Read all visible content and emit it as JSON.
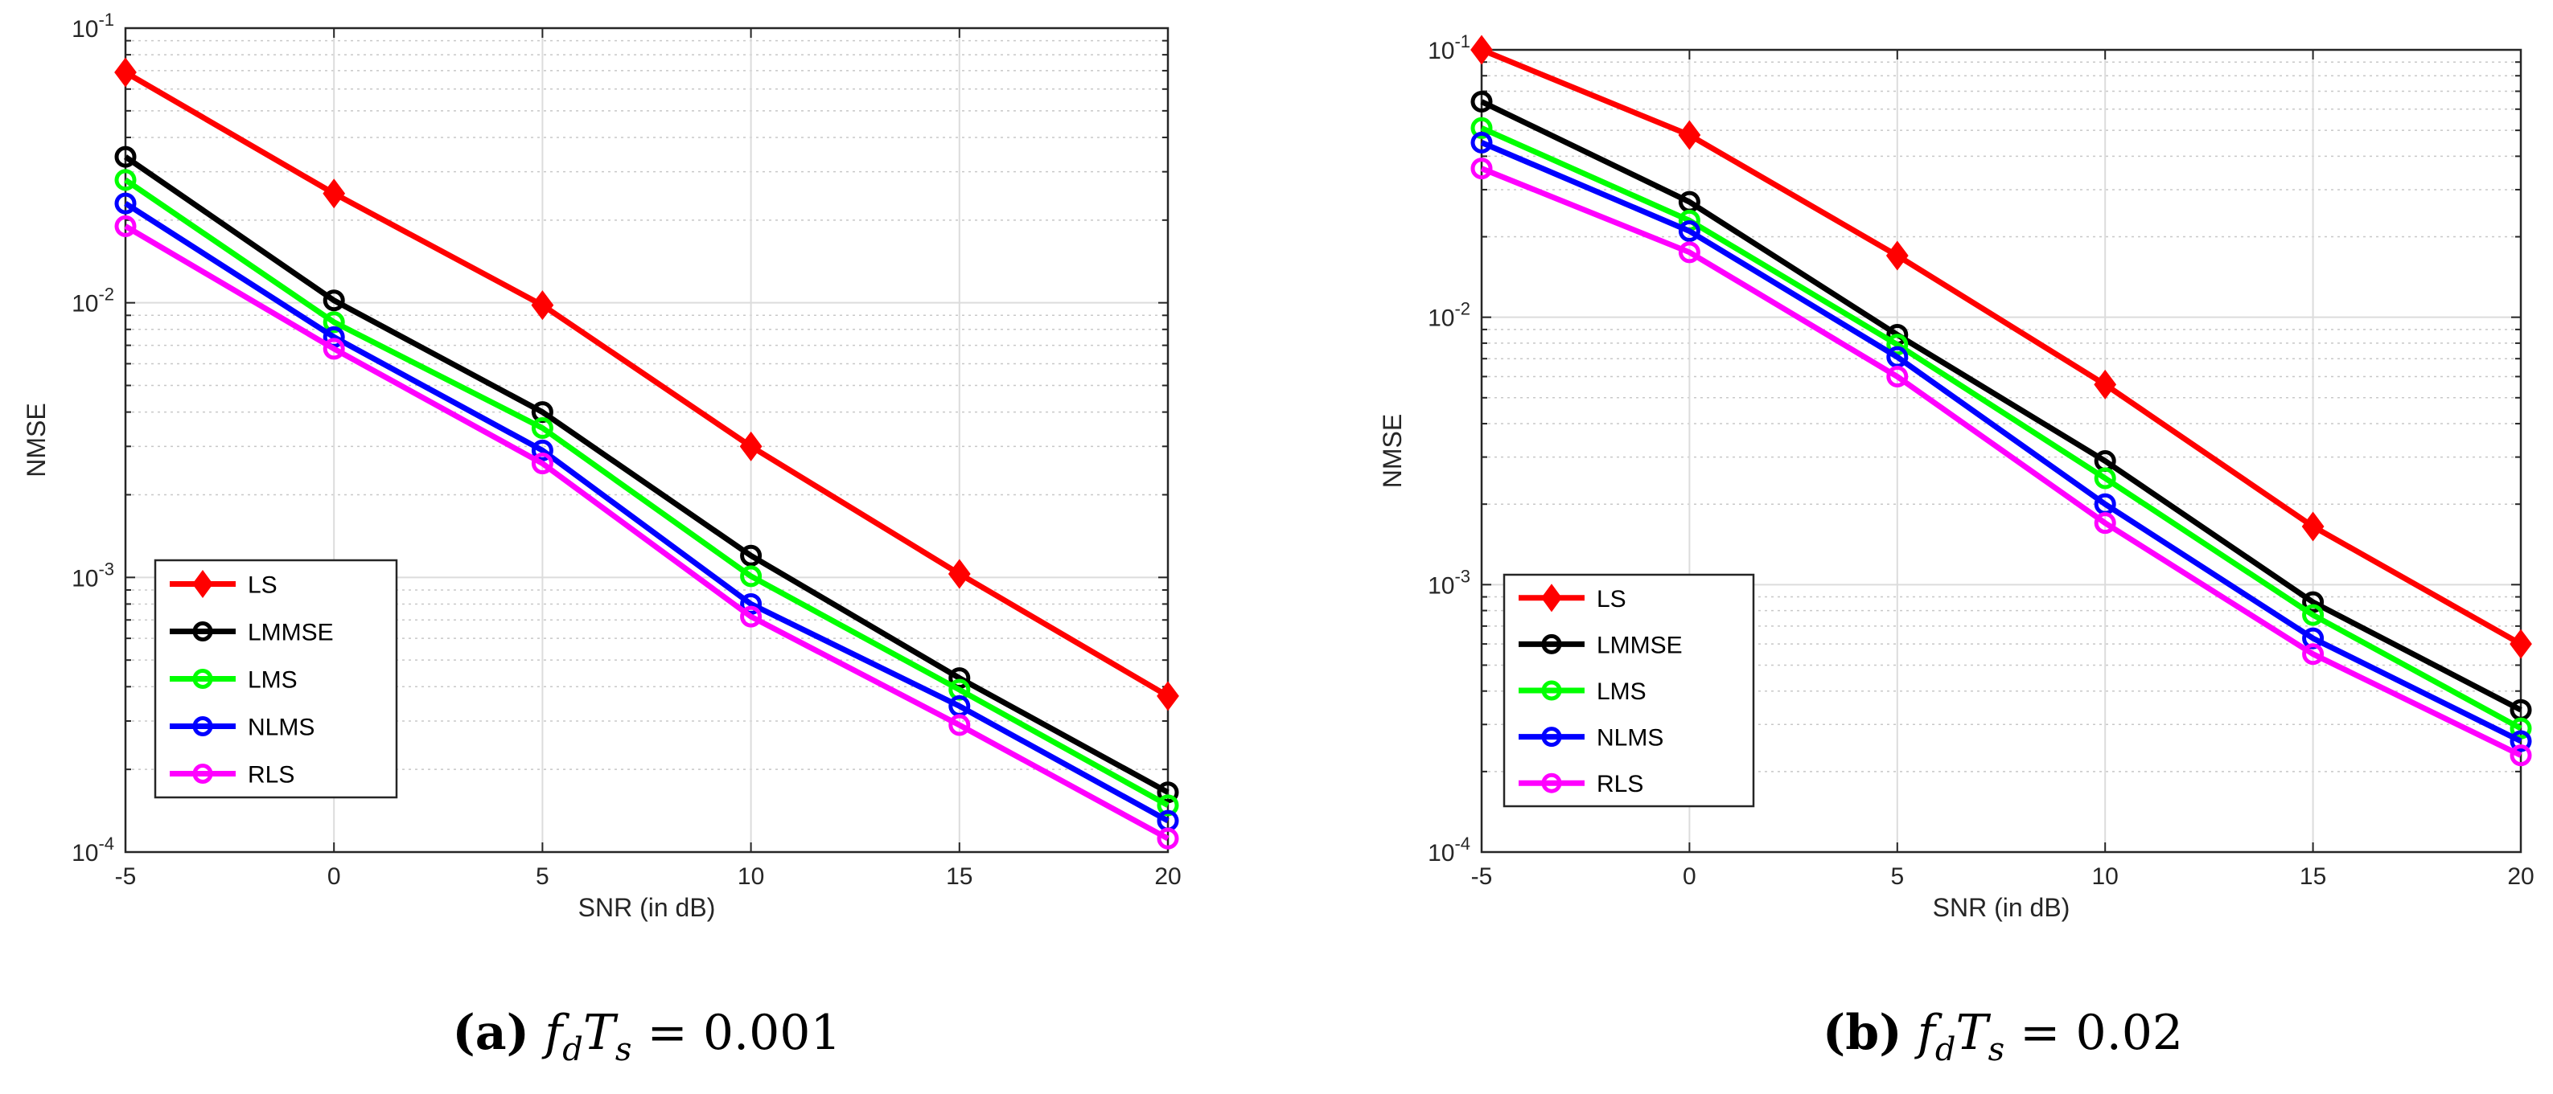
{
  "chart_data": [
    {
      "type": "line",
      "panel": "a",
      "caption": {
        "label": "(a)",
        "formula_lhs": "f",
        "sub_d": "d",
        "T": "T",
        "sub_s": "s",
        "equals": "=",
        "value": "0.001"
      },
      "xlabel": "SNR (in dB)",
      "ylabel": "NMSE",
      "yscale": "log",
      "xlim": [
        -5,
        20
      ],
      "ylim": [
        0.0001,
        0.1
      ],
      "xticks": [
        -5,
        0,
        5,
        10,
        15,
        20
      ],
      "xtick_labels": [
        "-5",
        "0",
        "5",
        "10",
        "15",
        "20"
      ],
      "yticks": [
        0.0001,
        0.001,
        0.01,
        0.1
      ],
      "ytick_labels": [
        {
          "base": "10",
          "exp": "-4"
        },
        {
          "base": "10",
          "exp": "-3"
        },
        {
          "base": "10",
          "exp": "-2"
        },
        {
          "base": "10",
          "exp": "-1"
        }
      ],
      "grid": true,
      "legend_position": "lower-left",
      "x": [
        -5,
        0,
        5,
        10,
        15,
        20
      ],
      "series": [
        {
          "name": "LS",
          "color": "#ff0000",
          "marker": "diamond",
          "values": [
            0.069,
            0.025,
            0.0098,
            0.003,
            0.00103,
            0.00037
          ]
        },
        {
          "name": "LMMSE",
          "color": "#000000",
          "marker": "circle",
          "values": [
            0.034,
            0.0102,
            0.004,
            0.0012,
            0.00043,
            0.000165
          ]
        },
        {
          "name": "LMS",
          "color": "#00ff00",
          "marker": "circle",
          "values": [
            0.028,
            0.0085,
            0.0035,
            0.00101,
            0.00039,
            0.000148
          ]
        },
        {
          "name": "NLMS",
          "color": "#0000ff",
          "marker": "circle",
          "values": [
            0.023,
            0.0075,
            0.0029,
            0.0008,
            0.00034,
            0.00013
          ]
        },
        {
          "name": "RLS",
          "color": "#ff00ff",
          "marker": "circle",
          "values": [
            0.019,
            0.0068,
            0.0026,
            0.00072,
            0.00029,
            0.000112
          ]
        }
      ]
    },
    {
      "type": "line",
      "panel": "b",
      "caption": {
        "label": "(b)",
        "formula_lhs": "f",
        "sub_d": "d",
        "T": "T",
        "sub_s": "s",
        "equals": "=",
        "value": "0.02"
      },
      "xlabel": "SNR (in dB)",
      "ylabel": "NMSE",
      "yscale": "log",
      "xlim": [
        -5,
        20
      ],
      "ylim": [
        0.0001,
        0.1
      ],
      "xticks": [
        -5,
        0,
        5,
        10,
        15,
        20
      ],
      "xtick_labels": [
        "-5",
        "0",
        "5",
        "10",
        "15",
        "20"
      ],
      "yticks": [
        0.0001,
        0.001,
        0.01,
        0.1
      ],
      "ytick_labels": [
        {
          "base": "10",
          "exp": "-4"
        },
        {
          "base": "10",
          "exp": "-3"
        },
        {
          "base": "10",
          "exp": "-2"
        },
        {
          "base": "10",
          "exp": "-1"
        }
      ],
      "grid": true,
      "legend_position": "lower-left",
      "x": [
        -5,
        0,
        5,
        10,
        15,
        20
      ],
      "series": [
        {
          "name": "LS",
          "color": "#ff0000",
          "marker": "diamond",
          "values": [
            0.1,
            0.048,
            0.017,
            0.0056,
            0.00165,
            0.0006
          ]
        },
        {
          "name": "LMMSE",
          "color": "#000000",
          "marker": "circle",
          "values": [
            0.064,
            0.027,
            0.0086,
            0.0029,
            0.00086,
            0.00034
          ]
        },
        {
          "name": "LMS",
          "color": "#00ff00",
          "marker": "circle",
          "values": [
            0.051,
            0.023,
            0.0079,
            0.0025,
            0.00077,
            0.00029
          ]
        },
        {
          "name": "NLMS",
          "color": "#0000ff",
          "marker": "circle",
          "values": [
            0.045,
            0.021,
            0.0071,
            0.002,
            0.00063,
            0.00026
          ]
        },
        {
          "name": "RLS",
          "color": "#ff00ff",
          "marker": "circle",
          "values": [
            0.036,
            0.0175,
            0.006,
            0.0017,
            0.00055,
            0.00023
          ]
        }
      ]
    }
  ]
}
